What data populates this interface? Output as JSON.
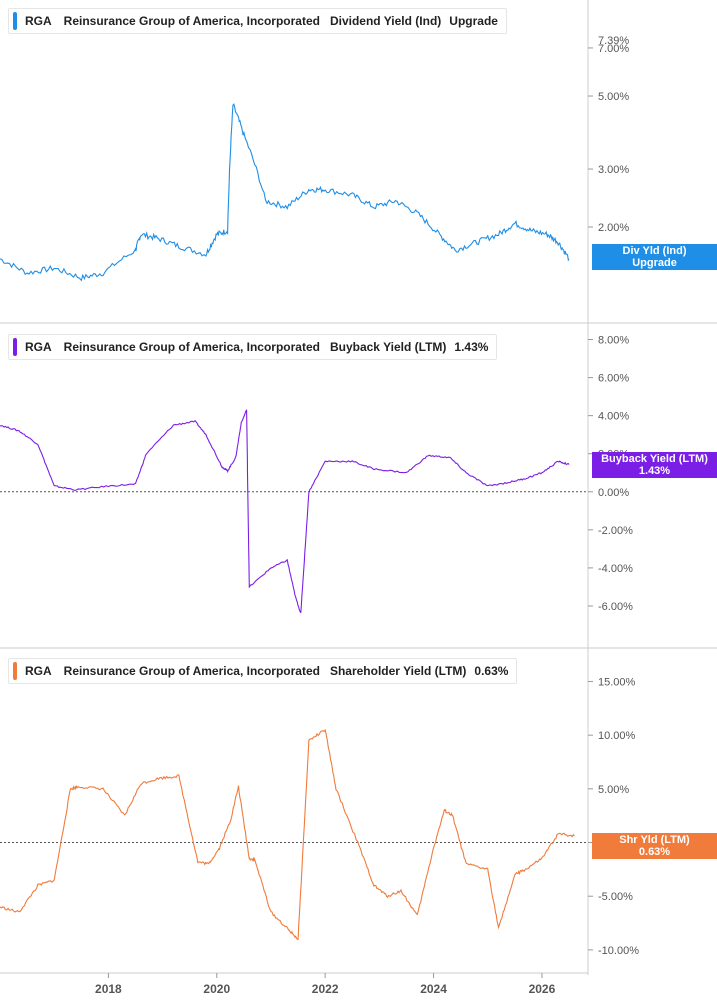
{
  "legends": [
    {
      "ticker": "RGA",
      "company": "Reinsurance Group of America, Incorporated",
      "metric": "Dividend Yield (Ind)",
      "value": "Upgrade",
      "color": "#1f8ee6"
    },
    {
      "ticker": "RGA",
      "company": "Reinsurance Group of America, Incorporated",
      "metric": "Buyback Yield (LTM)",
      "value": "1.43%",
      "color": "#7b1fe6"
    },
    {
      "ticker": "RGA",
      "company": "Reinsurance Group of America, Incorporated",
      "metric": "Shareholder Yield (LTM)",
      "value": "0.63%",
      "color": "#f07b3b"
    }
  ],
  "tags": [
    {
      "line1": "Div Yld (Ind)",
      "line2": "Upgrade",
      "color": "#1f8ee6"
    },
    {
      "line1": "Buyback Yield (LTM)",
      "line2": "1.43%",
      "color": "#7b1fe6"
    },
    {
      "line1": "Shr Yld (LTM)",
      "line2": "0.63%",
      "color": "#f07b3b"
    }
  ],
  "chart_data": [
    {
      "type": "line",
      "metric": "Dividend Yield (Ind)",
      "color": "#1f8ee6",
      "y_scale": "log",
      "y_ticks": [
        "7.00%",
        "5.00%",
        "3.00%",
        "2.00%"
      ],
      "y_tick_values": [
        7,
        5,
        3,
        2
      ],
      "y_top_label": "7.39%",
      "ylim": [
        1.2,
        7.4
      ],
      "x": [
        2016.0,
        2016.5,
        2017.0,
        2017.5,
        2017.9,
        2018.5,
        2018.6,
        2018.9,
        2019.3,
        2019.8,
        2020.0,
        2020.2,
        2020.3,
        2020.5,
        2020.9,
        2021.3,
        2021.7,
        2022.0,
        2022.5,
        2022.9,
        2023.3,
        2023.7,
        2024.1,
        2024.4,
        2024.8,
        2025.2,
        2025.5,
        2025.8,
        2026.1,
        2026.3,
        2026.5
      ],
      "values": [
        1.6,
        1.45,
        1.5,
        1.4,
        1.45,
        1.7,
        1.9,
        1.85,
        1.75,
        1.65,
        1.9,
        1.95,
        4.7,
        3.8,
        2.4,
        2.3,
        2.6,
        2.6,
        2.5,
        2.3,
        2.4,
        2.2,
        1.9,
        1.7,
        1.8,
        1.9,
        2.05,
        1.95,
        1.9,
        1.8,
        1.6
      ]
    },
    {
      "type": "line",
      "metric": "Buyback Yield (LTM)",
      "color": "#7b1fe6",
      "y_ticks": [
        "8.00%",
        "6.00%",
        "4.00%",
        "2.00%",
        "0.00%",
        "-2.00%",
        "-4.00%",
        "-6.00%"
      ],
      "y_tick_values": [
        8,
        6,
        4,
        2,
        0,
        -2,
        -4,
        -6
      ],
      "ylim": [
        -7.0,
        8.5
      ],
      "x": [
        2016.0,
        2016.35,
        2016.7,
        2017.0,
        2017.4,
        2018.0,
        2018.5,
        2018.7,
        2019.2,
        2019.6,
        2019.8,
        2020.1,
        2020.2,
        2020.35,
        2020.45,
        2020.55,
        2020.6,
        2021.0,
        2021.3,
        2021.45,
        2021.55,
        2021.7,
        2022.0,
        2022.5,
        2022.9,
        2023.5,
        2023.9,
        2024.3,
        2024.6,
        2025.0,
        2025.4,
        2025.7,
        2026.0,
        2026.3,
        2026.5
      ],
      "values": [
        3.5,
        3.2,
        2.5,
        0.3,
        0.1,
        0.3,
        0.4,
        2.0,
        3.5,
        3.7,
        3.0,
        1.3,
        1.1,
        1.8,
        3.6,
        4.3,
        -5.0,
        -4.0,
        -3.6,
        -5.5,
        -6.4,
        0.0,
        1.6,
        1.6,
        1.2,
        1.0,
        1.9,
        1.8,
        1.0,
        0.3,
        0.5,
        0.7,
        1.0,
        1.6,
        1.43
      ]
    },
    {
      "type": "line",
      "metric": "Shareholder Yield (LTM)",
      "color": "#f07b3b",
      "y_ticks": [
        "15.00%",
        "10.00%",
        "5.00%",
        "0.00%",
        "-5.00%",
        "-10.00%"
      ],
      "y_tick_values": [
        15,
        10,
        5,
        0,
        -5,
        -10
      ],
      "ylim": [
        -11.5,
        17
      ],
      "x_ticks": [
        "2018",
        "2020",
        "2022",
        "2024",
        "2026"
      ],
      "x": [
        2016.0,
        2016.35,
        2016.7,
        2017.0,
        2017.3,
        2017.45,
        2017.9,
        2018.3,
        2018.6,
        2018.95,
        2019.3,
        2019.65,
        2019.85,
        2020.05,
        2020.25,
        2020.4,
        2020.6,
        2020.7,
        2021.0,
        2021.3,
        2021.5,
        2021.7,
        2022.0,
        2022.2,
        2022.6,
        2022.9,
        2023.15,
        2023.4,
        2023.7,
        2024.0,
        2024.2,
        2024.35,
        2024.6,
        2025.0,
        2025.2,
        2025.5,
        2025.7,
        2026.0,
        2026.3,
        2026.6
      ],
      "values": [
        -6.0,
        -6.5,
        -4.0,
        -3.5,
        5.0,
        5.2,
        5.0,
        2.5,
        5.5,
        6.0,
        6.2,
        -1.8,
        -2.0,
        -0.5,
        2.0,
        5.2,
        -1.5,
        -1.6,
        -6.5,
        -8.0,
        -9.0,
        9.5,
        10.5,
        5.0,
        0.0,
        -4.0,
        -5.0,
        -4.5,
        -6.8,
        -0.5,
        3.0,
        2.5,
        -2.0,
        -2.5,
        -8.0,
        -3.0,
        -2.5,
        -1.5,
        0.8,
        0.63
      ]
    }
  ]
}
